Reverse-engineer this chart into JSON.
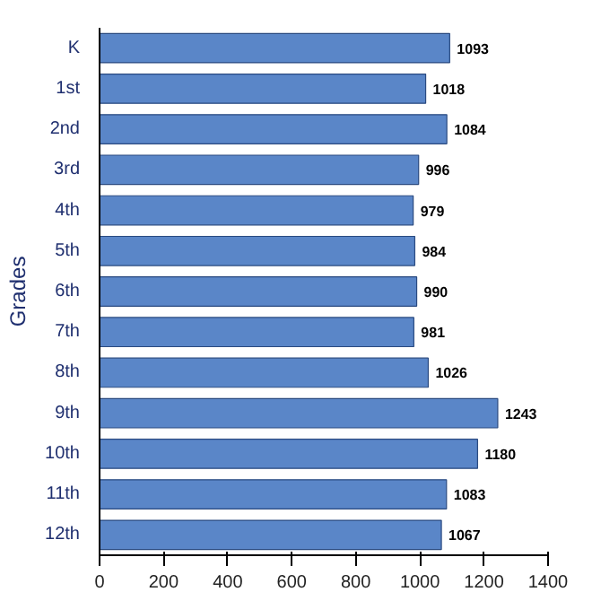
{
  "chart_data": {
    "type": "bar",
    "orientation": "horizontal",
    "ylabel": "Grades",
    "categories": [
      "K",
      "1st",
      "2nd",
      "3rd",
      "4th",
      "5th",
      "6th",
      "7th",
      "8th",
      "9th",
      "10th",
      "11th",
      "12th"
    ],
    "values": [
      1093,
      1018,
      1084,
      996,
      979,
      984,
      990,
      981,
      1026,
      1243,
      1180,
      1083,
      1067
    ],
    "color": "#5a86c8",
    "xlim": [
      0,
      1400
    ],
    "xticks": [
      0,
      200,
      400,
      600,
      800,
      1000,
      1200,
      1400
    ],
    "grid": false,
    "data_labels": true
  }
}
